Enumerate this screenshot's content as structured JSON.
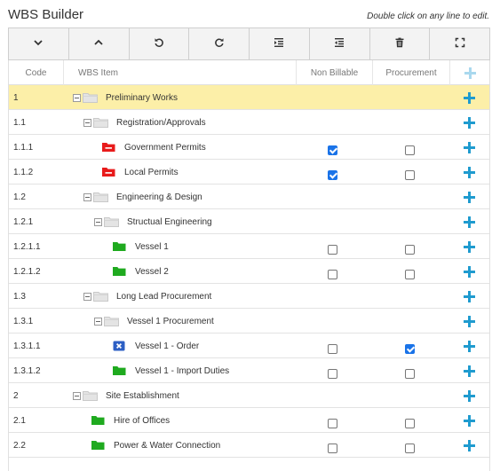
{
  "header": {
    "title": "WBS Builder",
    "hint": "Double click on any line to edit."
  },
  "toolbar": {
    "buttons": [
      "chevron-down",
      "chevron-up",
      "undo",
      "redo",
      "indent",
      "outdent",
      "delete",
      "fullscreen"
    ]
  },
  "grid": {
    "columns": {
      "code": "Code",
      "item": "WBS Item",
      "non_billable": "Non Billable",
      "procurement": "Procurement"
    },
    "rows": [
      {
        "code": "1",
        "label": "Preliminary Works",
        "level": 0,
        "type": "group",
        "selected": true
      },
      {
        "code": "1.1",
        "label": "Registration/Approvals",
        "level": 1,
        "type": "group"
      },
      {
        "code": "1.1.1",
        "label": "Government Permits",
        "level": 2,
        "type": "red",
        "non_billable": true,
        "procurement": false
      },
      {
        "code": "1.1.2",
        "label": "Local Permits",
        "level": 2,
        "type": "red",
        "non_billable": true,
        "procurement": false
      },
      {
        "code": "1.2",
        "label": "Engineering & Design",
        "level": 1,
        "type": "group"
      },
      {
        "code": "1.2.1",
        "label": "Structual Engineering",
        "level": 2,
        "type": "group"
      },
      {
        "code": "1.2.1.1",
        "label": "Vessel 1",
        "level": 3,
        "type": "green",
        "non_billable": false,
        "procurement": false
      },
      {
        "code": "1.2.1.2",
        "label": "Vessel 2",
        "level": 3,
        "type": "green",
        "non_billable": false,
        "procurement": false
      },
      {
        "code": "1.3",
        "label": "Long Lead Procurement",
        "level": 1,
        "type": "group"
      },
      {
        "code": "1.3.1",
        "label": "Vessel 1 Procurement",
        "level": 2,
        "type": "group"
      },
      {
        "code": "1.3.1.1",
        "label": "Vessel 1 - Order",
        "level": 3,
        "type": "blue",
        "non_billable": false,
        "procurement": true
      },
      {
        "code": "1.3.1.2",
        "label": "Vessel 1 - Import Duties",
        "level": 3,
        "type": "green",
        "non_billable": false,
        "procurement": false
      },
      {
        "code": "2",
        "label": "Site Establishment",
        "level": 0,
        "type": "group"
      },
      {
        "code": "2.1",
        "label": "Hire of Offices",
        "level": 1,
        "type": "green",
        "non_billable": false,
        "procurement": false
      },
      {
        "code": "2.2",
        "label": "Power & Water Connection",
        "level": 1,
        "type": "green",
        "non_billable": false,
        "procurement": false
      }
    ]
  },
  "colors": {
    "selected_row": "#fcefa8",
    "accent": "#1f9bcf",
    "folder_green": "#1faa1f",
    "folder_red": "#e81b1b",
    "folder_blue": "#2d5fc4"
  }
}
